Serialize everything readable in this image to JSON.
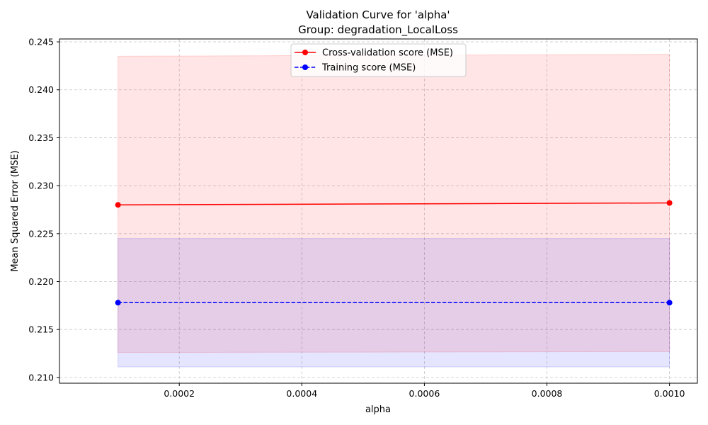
{
  "chart_data": {
    "type": "line",
    "title": "Validation Curve for 'alpha'",
    "subtitle": "Group: degradation_LocalLoss",
    "xlabel": "alpha",
    "ylabel": "Mean Squared Error (MSE)",
    "xlim": [
      4.5e-06,
      0.0010455
    ],
    "ylim": [
      0.2094,
      0.2453
    ],
    "x_ticks": [
      {
        "value": 0.0002,
        "label": "0.0002"
      },
      {
        "value": 0.0004,
        "label": "0.0004"
      },
      {
        "value": 0.0006,
        "label": "0.0006"
      },
      {
        "value": 0.0008,
        "label": "0.0008"
      },
      {
        "value": 0.001,
        "label": "0.0010"
      }
    ],
    "y_ticks": [
      {
        "value": 0.21,
        "label": "0.210"
      },
      {
        "value": 0.215,
        "label": "0.215"
      },
      {
        "value": 0.22,
        "label": "0.220"
      },
      {
        "value": 0.225,
        "label": "0.225"
      },
      {
        "value": 0.23,
        "label": "0.230"
      },
      {
        "value": 0.235,
        "label": "0.235"
      },
      {
        "value": 0.24,
        "label": "0.240"
      },
      {
        "value": 0.245,
        "label": "0.245"
      }
    ],
    "grid": true,
    "legend_position": "top-center",
    "series": [
      {
        "name": "Cross-validation score (MSE)",
        "color": "#ff0000",
        "line_style": "solid",
        "marker": "circle",
        "x": [
          0.0001,
          0.001
        ],
        "y": [
          0.228,
          0.2282
        ],
        "band_lower": [
          0.2126,
          0.2127
        ],
        "band_upper": [
          0.2435,
          0.2437
        ],
        "band_color": "#ff0000",
        "band_opacity": 0.1
      },
      {
        "name": "Training score (MSE)",
        "color": "#0000ff",
        "line_style": "dashed",
        "marker": "circle",
        "x": [
          0.0001,
          0.001
        ],
        "y": [
          0.2178,
          0.2178
        ],
        "band_lower": [
          0.2111,
          0.2111
        ],
        "band_upper": [
          0.2245,
          0.2245
        ],
        "band_color": "#0000ff",
        "band_opacity": 0.1
      }
    ]
  }
}
